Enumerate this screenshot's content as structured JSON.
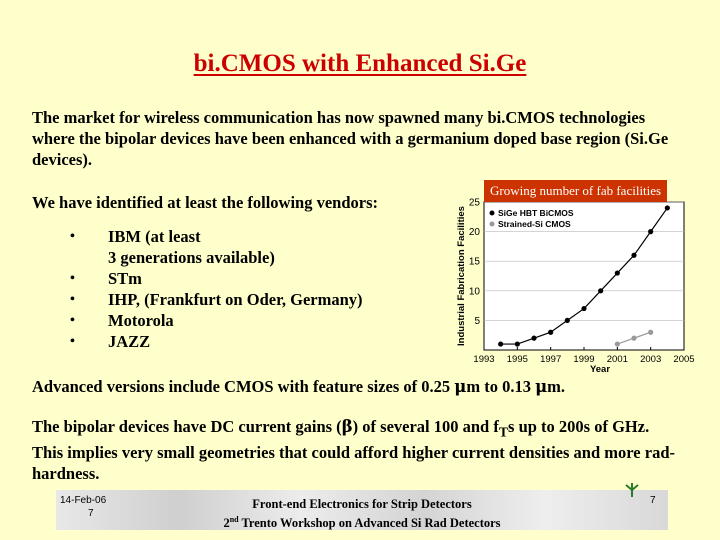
{
  "title": "bi.CMOS with Enhanced Si.Ge",
  "intro": "The market for wireless communication has now spawned many bi.CMOS technologies where the bipolar devices have been enhanced with a germanium doped base region (Si.Ge devices).",
  "vendors_intro": "We have identified at least the following vendors:",
  "vendors": [
    {
      "bullet": "•",
      "line1": "IBM (at least",
      "line2": "3 generations available)"
    },
    {
      "bullet": "•",
      "line1": "STm"
    },
    {
      "bullet": "•",
      "line1": "IHP, (Frankfurt on Oder, Germany)"
    },
    {
      "bullet": "•",
      "line1": "Motorola"
    },
    {
      "bullet": "•",
      "line1": "JAZZ"
    }
  ],
  "advanced": {
    "before": "Advanced versions include CMOS with feature sizes of 0.25 ",
    "mu1": "μ",
    "mid": "m to 0.13 ",
    "mu2": "μ",
    "after": "m."
  },
  "bipolar": {
    "part1": "The bipolar devices have DC current gains (",
    "beta": "β",
    "part2": ") of several 100 and f",
    "sub": "T",
    "part3": "s up to 200s of GHz.  This implies very small geometries that could afford higher current densities and more rad-hardness."
  },
  "chart_badge": "Growing number of fab facilities",
  "chart_data": {
    "type": "scatter",
    "ylabel": "Industrial Fabrication Facilities",
    "xlabel": "Year",
    "xlim": [
      1993,
      2005
    ],
    "ylim": [
      0,
      25
    ],
    "x_ticks": [
      "1993",
      "1995",
      "1997",
      "1999",
      "2001",
      "2003",
      "2005"
    ],
    "y_ticks": [
      "5",
      "10",
      "15",
      "20",
      "25"
    ],
    "legend": [
      "SiGe HBT BiCMOS",
      "Strained-Si CMOS"
    ],
    "series": [
      {
        "name": "SiGe HBT BiCMOS",
        "x": [
          1994,
          1995,
          1996,
          1997,
          1998,
          1999,
          2000,
          2001,
          2002,
          2003,
          2004
        ],
        "y": [
          1,
          1,
          2,
          3,
          5,
          7,
          10,
          13,
          16,
          20,
          24
        ]
      },
      {
        "name": "Strained-Si CMOS",
        "x": [
          2001,
          2002,
          2003
        ],
        "y": [
          1,
          2,
          3
        ]
      }
    ],
    "colors": {
      "series1": "#000000",
      "series2": "#999999"
    }
  },
  "footer": {
    "date": "14-Feb-06",
    "page_left": "7",
    "line1": "Front-end Electronics for Strip Detectors",
    "line2_prefix": "2",
    "line2_sup": "nd",
    "line2_rest": " Trento Workshop on Advanced Si Rad Detectors",
    "page_right": "7"
  }
}
